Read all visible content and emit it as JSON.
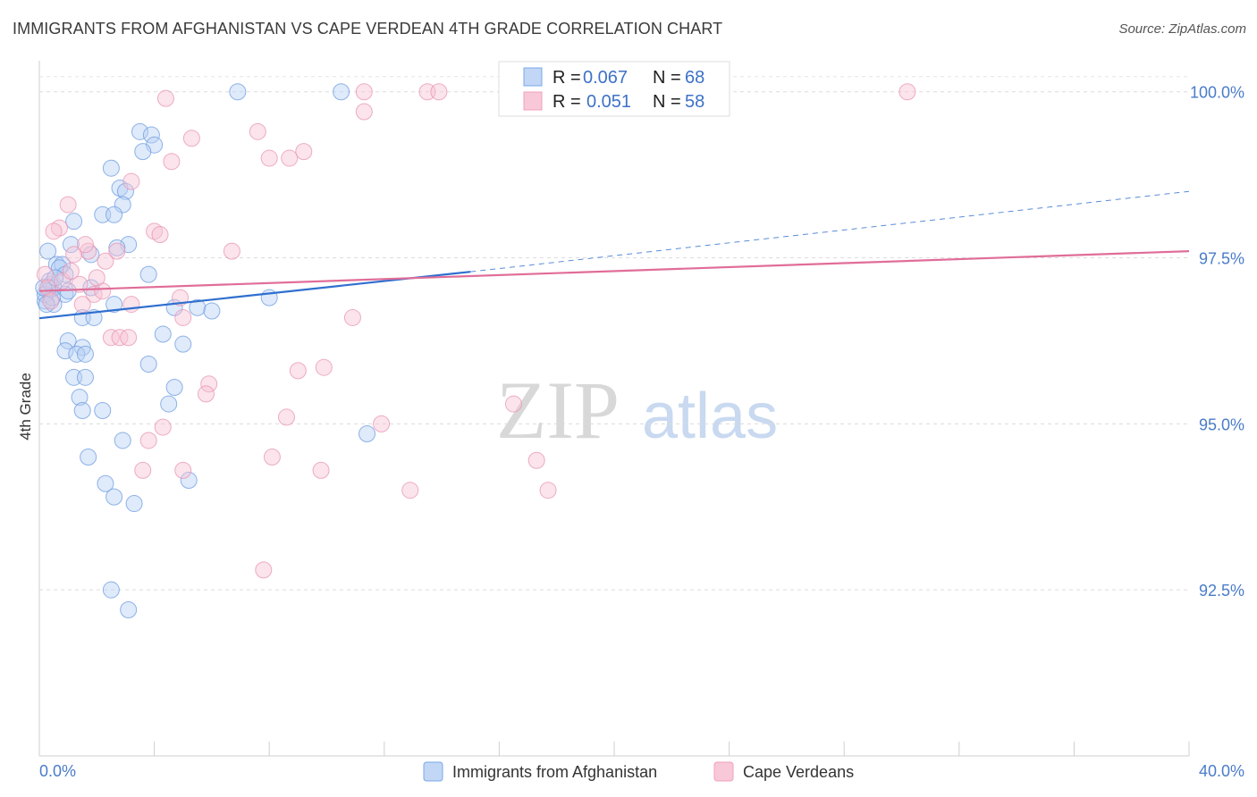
{
  "title": "IMMIGRANTS FROM AFGHANISTAN VS CAPE VERDEAN 4TH GRADE CORRELATION CHART",
  "source": "Source: ZipAtlas.com",
  "watermark": {
    "zip": "ZIP",
    "atlas": "atlas"
  },
  "chart_data": {
    "type": "scatter",
    "xlabel": "",
    "ylabel": "4th Grade",
    "xlim": [
      0,
      40
    ],
    "ylim": [
      90.0,
      100.4
    ],
    "x_tick_labels": [
      "0.0%",
      "40.0%"
    ],
    "y_ticks": [
      92.5,
      95.0,
      97.5,
      100.0
    ],
    "y_tick_labels": [
      "92.5%",
      "95.0%",
      "97.5%",
      "100.0%"
    ],
    "colors": {
      "blue": "#7aa8e8",
      "blue_line": "#2f6fcf",
      "pink": "#f0a0bb",
      "pink_line": "#e06d98"
    },
    "legend": {
      "r_label": "R =",
      "n_label": "N =",
      "entries": [
        {
          "r": "0.067",
          "n": "68"
        },
        {
          "r": "0.051",
          "n": "58"
        }
      ]
    },
    "series": [
      {
        "name": "Immigrants from Afghanistan",
        "color": "#7aa8e8",
        "trend": {
          "x0": 0,
          "y0": 96.59,
          "x1": 15.0,
          "y1": 97.29,
          "dash_to_x": 40,
          "dash_to_y": 98.5
        },
        "points": [
          [
            6.9,
            100.0
          ],
          [
            10.5,
            100.0
          ],
          [
            3.5,
            99.4
          ],
          [
            3.9,
            99.35
          ],
          [
            4.0,
            99.2
          ],
          [
            3.6,
            99.1
          ],
          [
            2.5,
            98.85
          ],
          [
            2.8,
            98.55
          ],
          [
            3.0,
            98.5
          ],
          [
            2.9,
            98.3
          ],
          [
            2.2,
            98.15
          ],
          [
            2.6,
            98.15
          ],
          [
            1.2,
            98.05
          ],
          [
            1.1,
            97.7
          ],
          [
            3.1,
            97.7
          ],
          [
            0.3,
            97.6
          ],
          [
            1.8,
            97.55
          ],
          [
            2.7,
            97.65
          ],
          [
            0.6,
            97.4
          ],
          [
            0.8,
            97.4
          ],
          [
            0.7,
            97.35
          ],
          [
            0.9,
            97.25
          ],
          [
            3.8,
            97.25
          ],
          [
            0.4,
            97.1
          ],
          [
            0.5,
            97.05
          ],
          [
            1.8,
            97.05
          ],
          [
            0.3,
            97.0
          ],
          [
            0.9,
            96.95
          ],
          [
            0.2,
            96.85
          ],
          [
            0.5,
            96.8
          ],
          [
            2.6,
            96.8
          ],
          [
            4.7,
            96.75
          ],
          [
            5.5,
            96.75
          ],
          [
            6.0,
            96.7
          ],
          [
            8.0,
            96.9
          ],
          [
            1.5,
            96.6
          ],
          [
            1.9,
            96.6
          ],
          [
            4.3,
            96.35
          ],
          [
            5.0,
            96.2
          ],
          [
            1.0,
            96.25
          ],
          [
            1.5,
            96.15
          ],
          [
            0.9,
            96.1
          ],
          [
            1.3,
            96.05
          ],
          [
            1.6,
            96.05
          ],
          [
            3.8,
            95.9
          ],
          [
            1.2,
            95.7
          ],
          [
            1.6,
            95.7
          ],
          [
            4.7,
            95.55
          ],
          [
            1.4,
            95.4
          ],
          [
            4.5,
            95.3
          ],
          [
            1.5,
            95.2
          ],
          [
            2.2,
            95.2
          ],
          [
            11.4,
            94.85
          ],
          [
            2.9,
            94.75
          ],
          [
            1.7,
            94.5
          ],
          [
            5.2,
            94.15
          ],
          [
            2.3,
            94.1
          ],
          [
            2.6,
            93.9
          ],
          [
            3.3,
            93.8
          ],
          [
            2.5,
            92.5
          ],
          [
            3.1,
            92.2
          ],
          [
            0.2,
            96.95
          ],
          [
            0.35,
            97.15
          ],
          [
            0.45,
            96.9
          ],
          [
            1.0,
            97.0
          ],
          [
            0.15,
            97.05
          ],
          [
            0.55,
            97.2
          ],
          [
            0.25,
            96.8
          ]
        ]
      },
      {
        "name": "Cape Verdeans",
        "color": "#f0a0bb",
        "trend": {
          "x0": 0,
          "y0": 97.0,
          "x1": 40,
          "y1": 97.6
        },
        "points": [
          [
            4.4,
            99.9
          ],
          [
            11.3,
            100.0
          ],
          [
            13.5,
            100.0
          ],
          [
            13.9,
            100.0
          ],
          [
            30.2,
            100.0
          ],
          [
            11.3,
            99.7
          ],
          [
            7.6,
            99.4
          ],
          [
            5.3,
            99.3
          ],
          [
            9.2,
            99.1
          ],
          [
            8.0,
            99.0
          ],
          [
            8.7,
            99.0
          ],
          [
            4.6,
            98.95
          ],
          [
            3.2,
            98.65
          ],
          [
            1.0,
            98.3
          ],
          [
            0.7,
            97.95
          ],
          [
            0.5,
            97.9
          ],
          [
            4.0,
            97.9
          ],
          [
            4.2,
            97.85
          ],
          [
            6.7,
            97.6
          ],
          [
            1.7,
            97.6
          ],
          [
            1.2,
            97.55
          ],
          [
            2.7,
            97.6
          ],
          [
            2.3,
            97.45
          ],
          [
            0.2,
            97.25
          ],
          [
            1.4,
            97.1
          ],
          [
            4.9,
            96.9
          ],
          [
            1.9,
            96.95
          ],
          [
            1.5,
            96.8
          ],
          [
            3.2,
            96.8
          ],
          [
            5.0,
            96.6
          ],
          [
            10.9,
            96.6
          ],
          [
            2.5,
            96.3
          ],
          [
            2.8,
            96.3
          ],
          [
            3.1,
            96.3
          ],
          [
            9.0,
            95.8
          ],
          [
            9.9,
            95.85
          ],
          [
            5.9,
            95.6
          ],
          [
            5.8,
            95.45
          ],
          [
            16.5,
            95.3
          ],
          [
            8.6,
            95.1
          ],
          [
            11.9,
            95.0
          ],
          [
            4.3,
            94.95
          ],
          [
            3.8,
            94.75
          ],
          [
            8.1,
            94.5
          ],
          [
            17.3,
            94.45
          ],
          [
            3.6,
            94.3
          ],
          [
            5.0,
            94.3
          ],
          [
            9.8,
            94.3
          ],
          [
            12.9,
            94.0
          ],
          [
            17.7,
            94.0
          ],
          [
            7.8,
            92.8
          ],
          [
            0.3,
            97.05
          ],
          [
            0.8,
            97.15
          ],
          [
            1.1,
            97.3
          ],
          [
            2.2,
            97.0
          ],
          [
            0.4,
            96.85
          ],
          [
            1.6,
            97.7
          ],
          [
            2.0,
            97.2
          ]
        ]
      }
    ]
  }
}
